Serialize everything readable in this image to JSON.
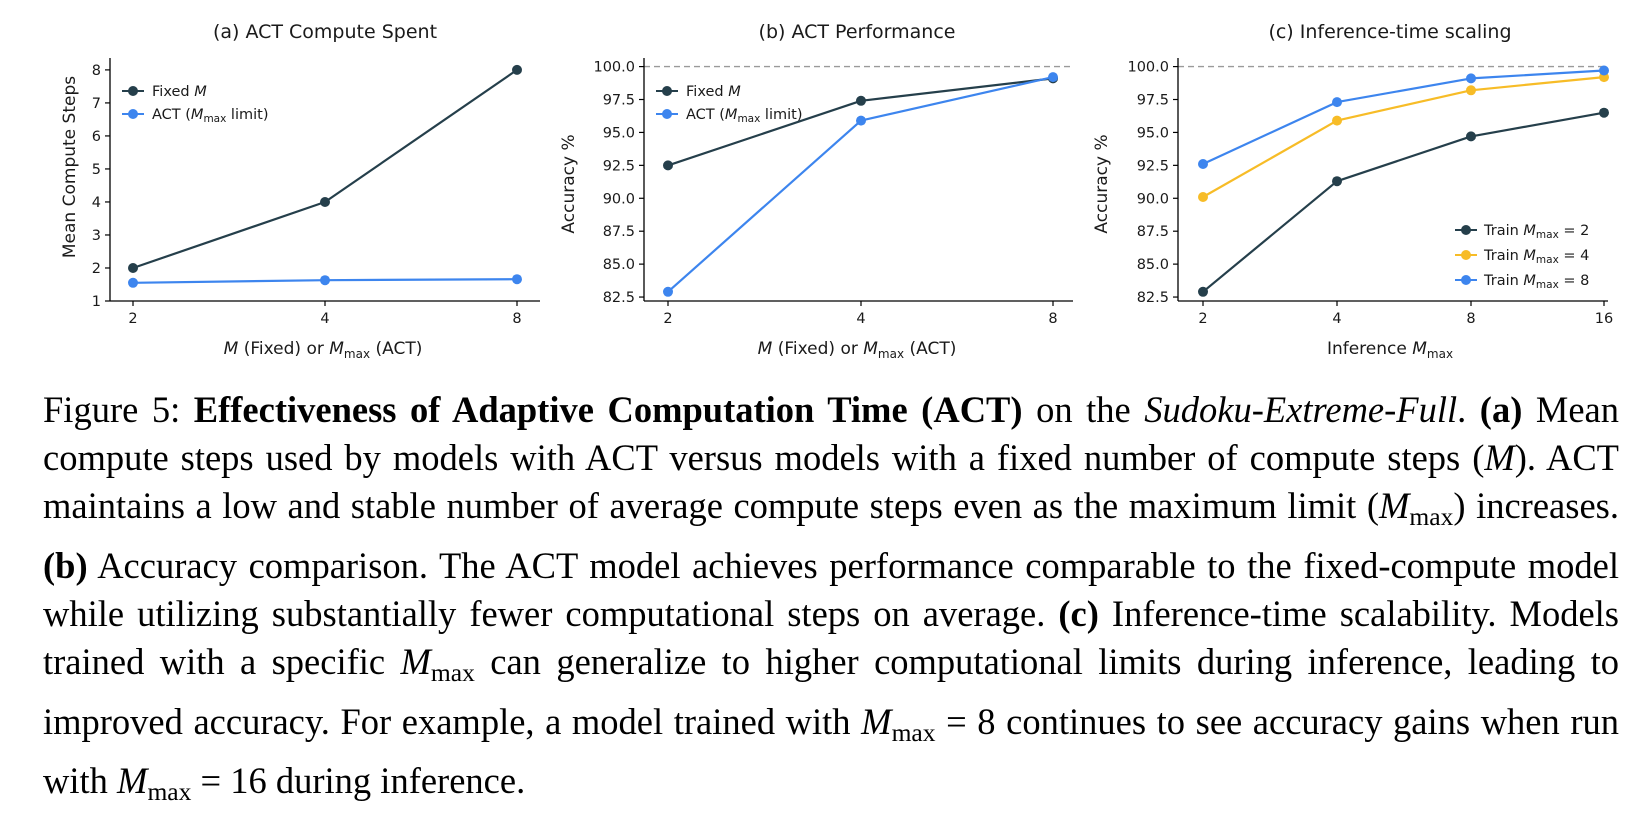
{
  "chart_data": [
    {
      "type": "line",
      "title": "(a) ACT Compute Spent",
      "xlabel": "M (Fixed) or Mmax (ACT)",
      "ylabel": "Mean Compute Steps",
      "x_ticks": [
        "2",
        "4",
        "8"
      ],
      "y_ticks": [
        "1",
        "2",
        "3",
        "4",
        "5",
        "6",
        "7",
        "8"
      ],
      "ylim": [
        1,
        8.3
      ],
      "legend_position": "upper-left",
      "reference_line": null,
      "series": [
        {
          "name": "Fixed M",
          "color": "#253f4b",
          "values": [
            2,
            4,
            8
          ]
        },
        {
          "name": "ACT (Mmax limit)",
          "color": "#3d85ee",
          "values": [
            1.55,
            1.63,
            1.66
          ]
        }
      ]
    },
    {
      "type": "line",
      "title": "(b) ACT Performance",
      "xlabel": "M (Fixed) or Mmax (ACT)",
      "ylabel": "Accuracy %",
      "x_ticks": [
        "2",
        "4",
        "8"
      ],
      "y_ticks": [
        "82.5",
        "85.0",
        "87.5",
        "90.0",
        "92.5",
        "95.0",
        "97.5",
        "100.0"
      ],
      "ylim": [
        82.2,
        100.5
      ],
      "legend_position": "upper-left",
      "reference_line": 100.0,
      "series": [
        {
          "name": "Fixed M",
          "color": "#253f4b",
          "values": [
            92.5,
            97.4,
            99.1
          ]
        },
        {
          "name": "ACT (Mmax limit)",
          "color": "#3d85ee",
          "values": [
            82.9,
            95.9,
            99.2
          ]
        }
      ]
    },
    {
      "type": "line",
      "title": "(c) Inference-time scaling",
      "xlabel": "Inference Mmax",
      "ylabel": "Accuracy %",
      "x_ticks": [
        "2",
        "4",
        "8",
        "16"
      ],
      "y_ticks": [
        "82.5",
        "85.0",
        "87.5",
        "90.0",
        "92.5",
        "95.0",
        "97.5",
        "100.0"
      ],
      "ylim": [
        82.2,
        100.5
      ],
      "legend_position": "lower-right",
      "reference_line": 100.0,
      "series": [
        {
          "name": "Train Mmax = 2",
          "color": "#253f4b",
          "values": [
            82.9,
            91.3,
            94.7,
            96.5
          ]
        },
        {
          "name": "Train Mmax = 4",
          "color": "#f7bc27",
          "values": [
            90.1,
            95.9,
            98.2,
            99.2
          ]
        },
        {
          "name": "Train Mmax = 8",
          "color": "#3d85ee",
          "values": [
            92.6,
            97.3,
            99.1,
            99.7
          ]
        }
      ]
    }
  ],
  "caption": {
    "label": "Figure 5:",
    "title_bold": "Effectiveness of Adaptive Computation Time (ACT)",
    "on_the": " on the ",
    "dataset": "Sudoku-Extreme-Full",
    "period": ".",
    "a_label": "(a)",
    "a_text_1": " Mean compute steps used by models with ACT versus models with a fixed number of compute steps (",
    "m_symbol": "M",
    "a_text_2": "). ACT maintains a low and stable number of average compute steps even as the maximum limit (",
    "max_sub": "max",
    "a_text_3": ") increases. ",
    "b_label": "(b)",
    "b_text": " Accuracy comparison. The ACT model achieves performance comparable to the fixed-compute model while utilizing substantially fewer computational steps on average. ",
    "c_label": "(c)",
    "c_text_1": " Inference-time scalability. Models trained with a specific ",
    "c_text_2": " can generalize to higher computational limits during inference, leading to improved accuracy. For example, a model trained with ",
    "eq_8": " = 8",
    "c_text_3": " continues to see accuracy gains when run with ",
    "eq_16": " = 16",
    "c_text_4": " during inference."
  }
}
